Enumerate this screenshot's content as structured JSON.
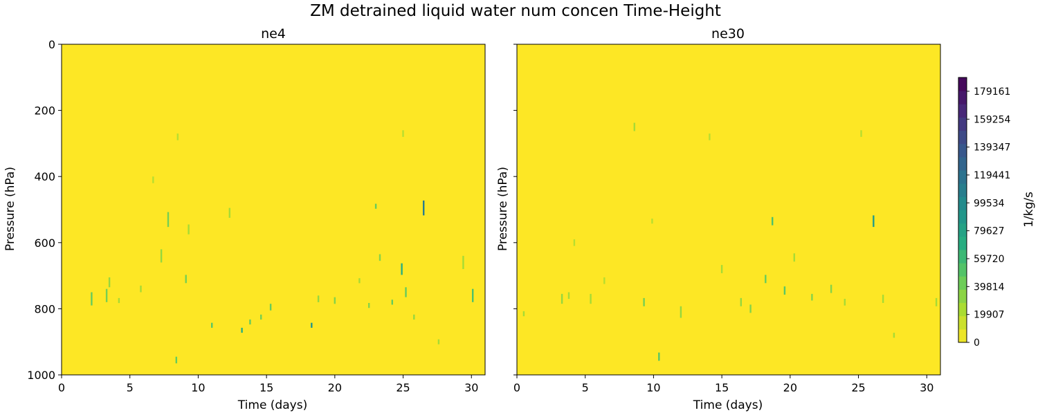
{
  "chart_data": {
    "type": "heatmap",
    "title": "ZM detrained liquid water num concen Time-Height",
    "colorbar": {
      "label": "1/kg/s",
      "ticks": [
        "0",
        "19907",
        "39814",
        "59720",
        "79627",
        "99534",
        "119441",
        "139347",
        "159254",
        "179161"
      ],
      "min": 0,
      "max": 189000,
      "colormap": "viridis_r"
    },
    "panels": [
      {
        "title": "ne4",
        "xlabel": "Time (days)",
        "ylabel": "Pressure (hPa)",
        "xlim": [
          0,
          31
        ],
        "ylim": [
          1000,
          0
        ],
        "xticks": [
          "0",
          "5",
          "10",
          "15",
          "20",
          "25",
          "30"
        ],
        "yticks": [
          "0",
          "200",
          "400",
          "600",
          "800",
          "1000"
        ],
        "background_value": 0,
        "features": [
          {
            "t": 2.2,
            "p": 770,
            "dp": 40,
            "v": 45000
          },
          {
            "t": 3.3,
            "p": 760,
            "dp": 40,
            "v": 40000
          },
          {
            "t": 3.5,
            "p": 720,
            "dp": 30,
            "v": 30000
          },
          {
            "t": 4.2,
            "p": 775,
            "dp": 15,
            "v": 25000
          },
          {
            "t": 5.8,
            "p": 740,
            "dp": 20,
            "v": 25000
          },
          {
            "t": 6.7,
            "p": 410,
            "dp": 20,
            "v": 20000
          },
          {
            "t": 7.3,
            "p": 640,
            "dp": 40,
            "v": 30000
          },
          {
            "t": 7.8,
            "p": 530,
            "dp": 45,
            "v": 40000
          },
          {
            "t": 8.5,
            "p": 280,
            "dp": 20,
            "v": 20000
          },
          {
            "t": 8.4,
            "p": 955,
            "dp": 20,
            "v": 45000
          },
          {
            "t": 9.1,
            "p": 710,
            "dp": 25,
            "v": 40000
          },
          {
            "t": 9.3,
            "p": 560,
            "dp": 30,
            "v": 25000
          },
          {
            "t": 11.0,
            "p": 850,
            "dp": 15,
            "v": 50000
          },
          {
            "t": 12.3,
            "p": 510,
            "dp": 30,
            "v": 25000
          },
          {
            "t": 13.2,
            "p": 865,
            "dp": 15,
            "v": 70000
          },
          {
            "t": 13.8,
            "p": 840,
            "dp": 15,
            "v": 45000
          },
          {
            "t": 14.6,
            "p": 825,
            "dp": 15,
            "v": 40000
          },
          {
            "t": 15.3,
            "p": 795,
            "dp": 20,
            "v": 45000
          },
          {
            "t": 18.3,
            "p": 850,
            "dp": 15,
            "v": 90000
          },
          {
            "t": 18.8,
            "p": 770,
            "dp": 20,
            "v": 30000
          },
          {
            "t": 20.0,
            "p": 775,
            "dp": 20,
            "v": 35000
          },
          {
            "t": 21.8,
            "p": 715,
            "dp": 15,
            "v": 25000
          },
          {
            "t": 22.5,
            "p": 790,
            "dp": 15,
            "v": 35000
          },
          {
            "t": 23.0,
            "p": 490,
            "dp": 15,
            "v": 45000
          },
          {
            "t": 23.3,
            "p": 645,
            "dp": 20,
            "v": 35000
          },
          {
            "t": 24.2,
            "p": 780,
            "dp": 15,
            "v": 45000
          },
          {
            "t": 24.9,
            "p": 680,
            "dp": 35,
            "v": 70000
          },
          {
            "t": 25.0,
            "p": 270,
            "dp": 20,
            "v": 20000
          },
          {
            "t": 25.2,
            "p": 750,
            "dp": 30,
            "v": 45000
          },
          {
            "t": 25.8,
            "p": 825,
            "dp": 15,
            "v": 30000
          },
          {
            "t": 26.5,
            "p": 495,
            "dp": 45,
            "v": 110000
          },
          {
            "t": 27.6,
            "p": 900,
            "dp": 15,
            "v": 25000
          },
          {
            "t": 29.4,
            "p": 660,
            "dp": 40,
            "v": 25000
          },
          {
            "t": 30.1,
            "p": 760,
            "dp": 40,
            "v": 55000
          }
        ]
      },
      {
        "title": "ne30",
        "xlabel": "Time (days)",
        "ylabel": "",
        "xlim": [
          0,
          31
        ],
        "ylim": [
          1000,
          0
        ],
        "xticks": [
          "0",
          "5",
          "10",
          "15",
          "20",
          "25",
          "30"
        ],
        "yticks": [
          "0",
          "200",
          "400",
          "600",
          "800",
          "1000"
        ],
        "background_value": 0,
        "features": [
          {
            "t": 0.5,
            "p": 815,
            "dp": 15,
            "v": 25000
          },
          {
            "t": 3.3,
            "p": 770,
            "dp": 30,
            "v": 30000
          },
          {
            "t": 3.8,
            "p": 760,
            "dp": 20,
            "v": 25000
          },
          {
            "t": 4.2,
            "p": 600,
            "dp": 20,
            "v": 20000
          },
          {
            "t": 5.4,
            "p": 770,
            "dp": 30,
            "v": 25000
          },
          {
            "t": 6.4,
            "p": 715,
            "dp": 20,
            "v": 20000
          },
          {
            "t": 8.6,
            "p": 250,
            "dp": 25,
            "v": 25000
          },
          {
            "t": 9.3,
            "p": 780,
            "dp": 25,
            "v": 40000
          },
          {
            "t": 9.9,
            "p": 535,
            "dp": 15,
            "v": 20000
          },
          {
            "t": 10.4,
            "p": 945,
            "dp": 25,
            "v": 50000
          },
          {
            "t": 12.0,
            "p": 810,
            "dp": 35,
            "v": 30000
          },
          {
            "t": 14.1,
            "p": 280,
            "dp": 20,
            "v": 20000
          },
          {
            "t": 15.0,
            "p": 680,
            "dp": 25,
            "v": 25000
          },
          {
            "t": 16.4,
            "p": 780,
            "dp": 25,
            "v": 30000
          },
          {
            "t": 17.1,
            "p": 800,
            "dp": 25,
            "v": 35000
          },
          {
            "t": 18.2,
            "p": 710,
            "dp": 25,
            "v": 45000
          },
          {
            "t": 18.7,
            "p": 535,
            "dp": 25,
            "v": 55000
          },
          {
            "t": 19.6,
            "p": 745,
            "dp": 25,
            "v": 50000
          },
          {
            "t": 20.3,
            "p": 645,
            "dp": 25,
            "v": 25000
          },
          {
            "t": 21.6,
            "p": 765,
            "dp": 20,
            "v": 35000
          },
          {
            "t": 23.0,
            "p": 740,
            "dp": 25,
            "v": 35000
          },
          {
            "t": 24.0,
            "p": 780,
            "dp": 20,
            "v": 25000
          },
          {
            "t": 25.2,
            "p": 270,
            "dp": 20,
            "v": 20000
          },
          {
            "t": 26.1,
            "p": 535,
            "dp": 35,
            "v": 85000
          },
          {
            "t": 26.8,
            "p": 770,
            "dp": 25,
            "v": 25000
          },
          {
            "t": 27.6,
            "p": 880,
            "dp": 15,
            "v": 25000
          },
          {
            "t": 30.7,
            "p": 780,
            "dp": 25,
            "v": 25000
          }
        ]
      }
    ]
  }
}
